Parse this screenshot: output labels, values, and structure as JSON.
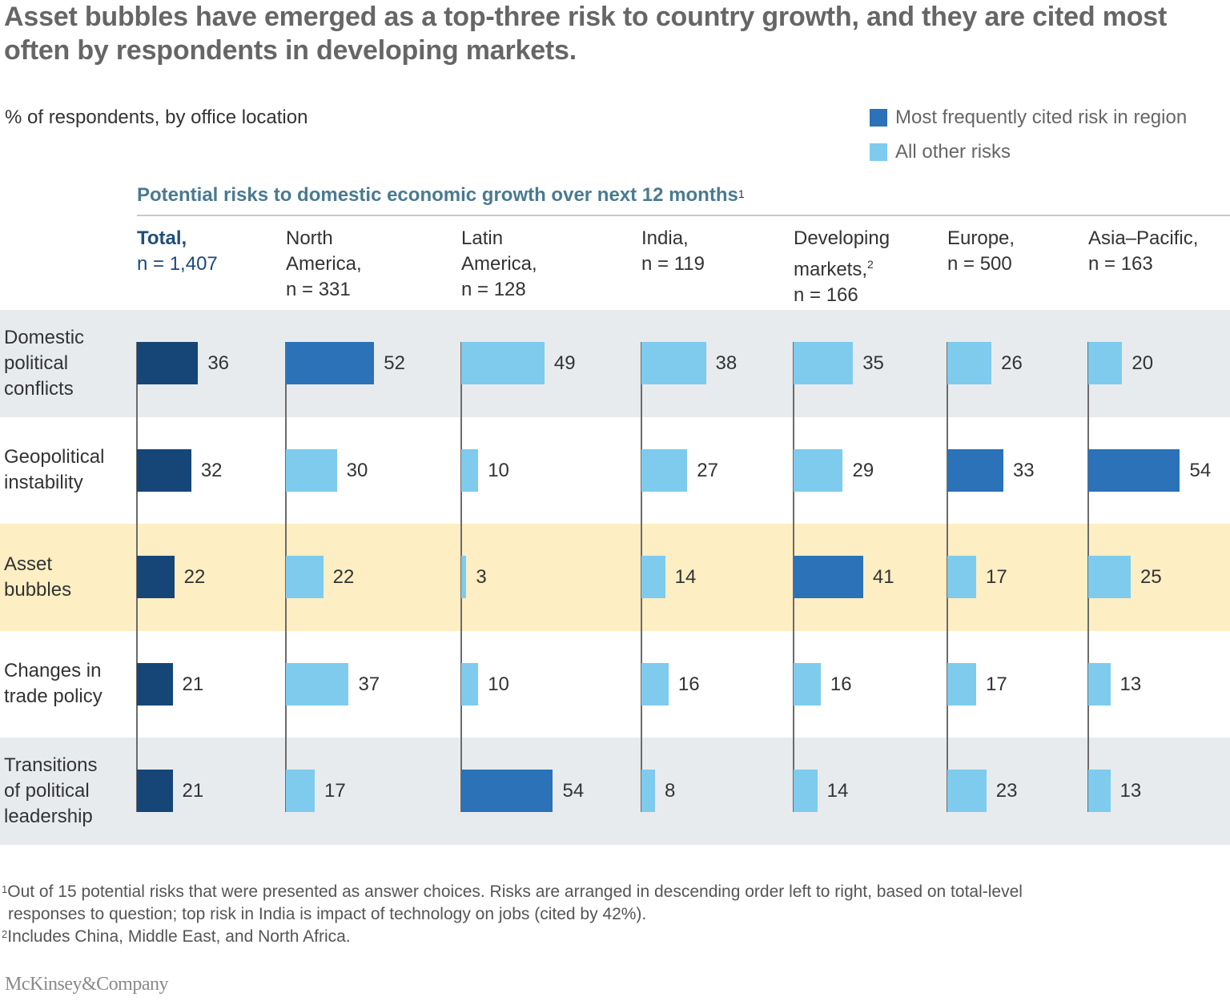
{
  "title": "Asset bubbles have emerged as a top-three risk to country growth, and they are cited most often by respondents in developing markets.",
  "subtitle": "% of respondents, by office location",
  "legend": [
    {
      "label": "Most frequently cited risk in region",
      "color": "#2b72b8"
    },
    {
      "label": "All other risks",
      "color": "#7ecbee"
    }
  ],
  "colors": {
    "total": "#154677",
    "top": "#2b72b8",
    "other": "#7ecbee",
    "band_gray": "#e8ebee",
    "band_highlight": "#fdeec4",
    "axis": "#6b6b6b"
  },
  "chart_heading": "Potential risks to domestic economic growth over next 12 months",
  "chart_heading_sup": "1",
  "chart_data": {
    "type": "bar",
    "orientation": "horizontal",
    "title": "Potential risks to domestic economic growth over next 12 months",
    "unit": "% of respondents",
    "categories": [
      "Domestic political conflicts",
      "Geopolitical instability",
      "Asset bubbles",
      "Changes in trade policy",
      "Transitions of political leadership"
    ],
    "highlight_category": "Asset bubbles",
    "series": [
      {
        "name": "Total",
        "n": "1,407",
        "values": [
          36,
          32,
          22,
          21,
          21
        ],
        "top_index": null
      },
      {
        "name": "North America",
        "n": "331",
        "values": [
          52,
          30,
          22,
          37,
          17
        ],
        "top_index": 0
      },
      {
        "name": "Latin America",
        "n": "128",
        "values": [
          49,
          10,
          3,
          10,
          54
        ],
        "top_index": 4
      },
      {
        "name": "India",
        "n": "119",
        "values": [
          38,
          27,
          14,
          16,
          8
        ],
        "top_index": null
      },
      {
        "name": "Developing markets",
        "n": "166",
        "values": [
          35,
          29,
          41,
          16,
          14
        ],
        "top_index": 2
      },
      {
        "name": "Europe",
        "n": "500",
        "values": [
          26,
          33,
          17,
          17,
          23
        ],
        "top_index": 1
      },
      {
        "name": "Asia–Pacific",
        "n": "163",
        "values": [
          20,
          54,
          25,
          13,
          13
        ],
        "top_index": 1
      }
    ],
    "legend_placement": "top-right",
    "xlim": [
      0,
      54
    ]
  },
  "column_headers": [
    {
      "lines": [
        "Total,",
        "n = 1,407"
      ],
      "sup": ""
    },
    {
      "lines": [
        "North",
        "America,",
        "n = 331"
      ],
      "sup": ""
    },
    {
      "lines": [
        "Latin",
        "America,",
        "n = 128"
      ],
      "sup": ""
    },
    {
      "lines": [
        "India,",
        "n = 119"
      ],
      "sup": ""
    },
    {
      "lines": [
        "Developing",
        "markets,",
        "n = 166"
      ],
      "sup": "2"
    },
    {
      "lines": [
        "Europe,",
        "n = 500"
      ],
      "sup": ""
    },
    {
      "lines": [
        "Asia–Pacific,",
        "n = 163"
      ],
      "sup": ""
    }
  ],
  "row_labels": [
    [
      "Domestic",
      "political",
      "conflicts"
    ],
    [
      "Geopolitical",
      "instability"
    ],
    [
      "Asset",
      "bubbles"
    ],
    [
      "Changes in",
      "trade policy"
    ],
    [
      "Transitions",
      "of political",
      "leadership"
    ]
  ],
  "footnotes": {
    "fn1_sup": "1",
    "fn1_line1": "Out of 15 potential risks that were presented as answer choices. Risks are arranged in descending order left to right, based on total-level",
    "fn1_line2": "responses to question; top risk in India is impact of technology on jobs (cited by 42%).",
    "fn2_sup": "2",
    "fn2": "Includes China, Middle East, and North Africa."
  },
  "logo": "McKinsey&Company"
}
